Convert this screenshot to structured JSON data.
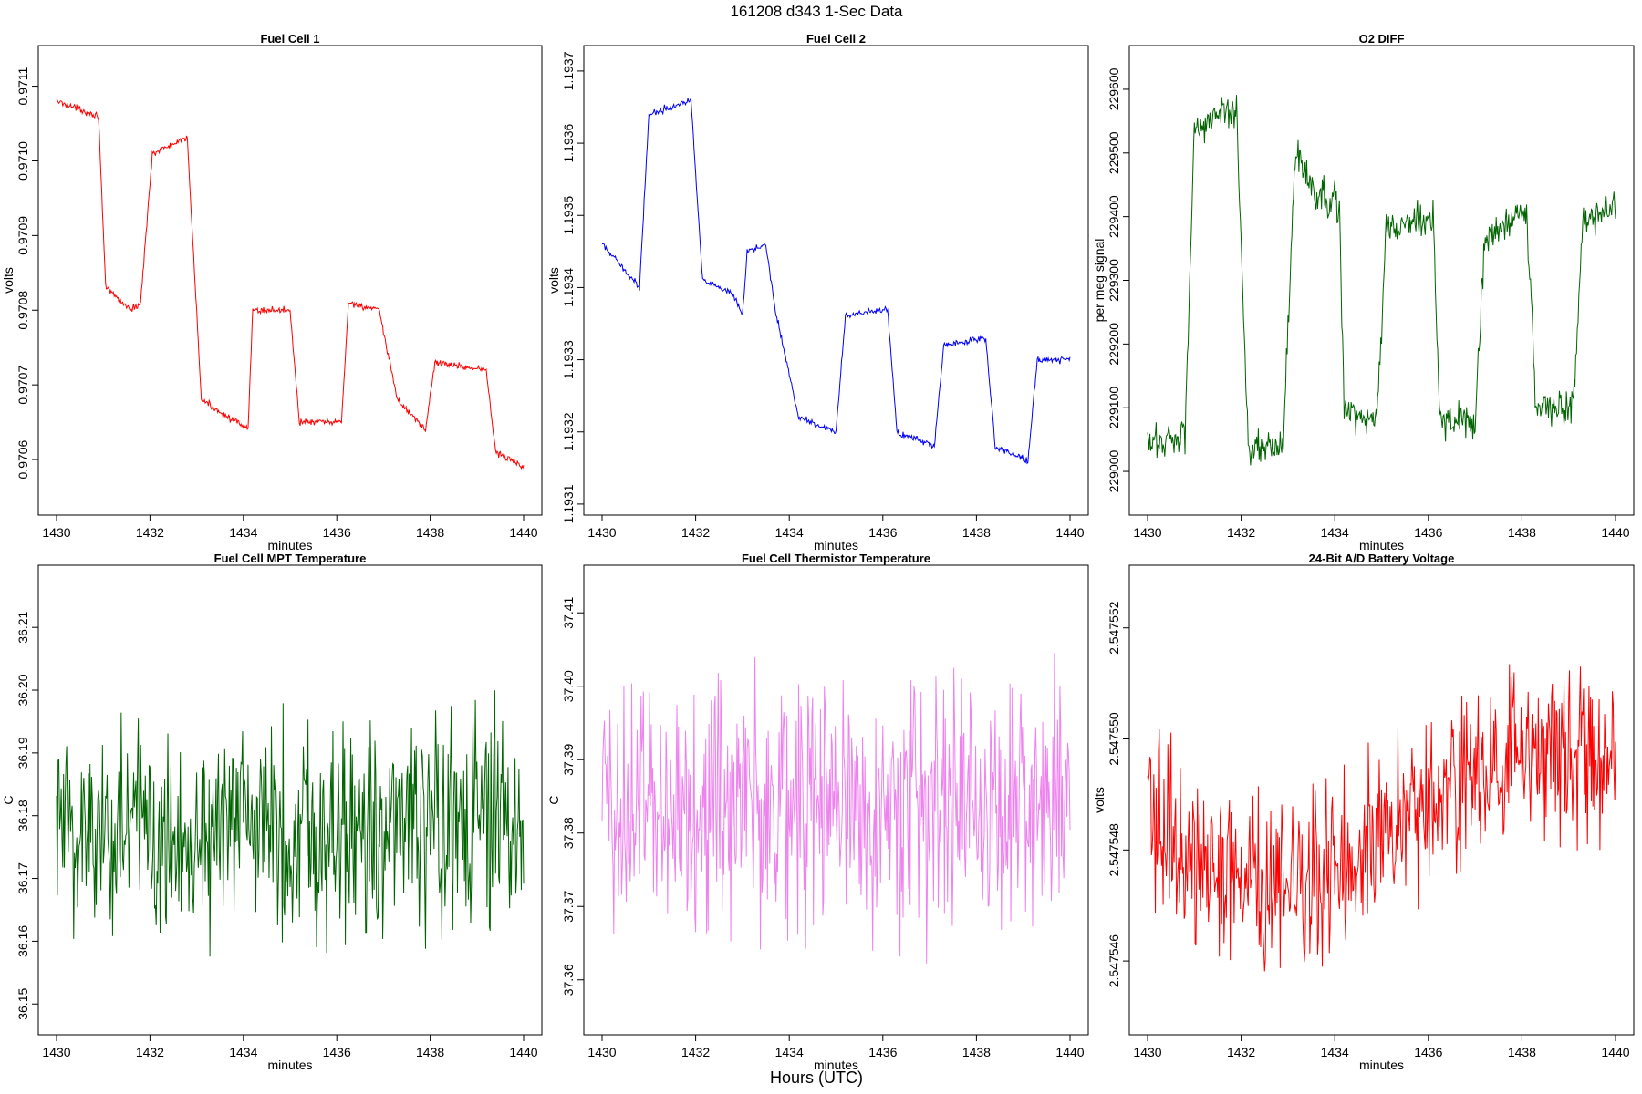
{
  "figure": {
    "title": "161208   d343   1-Sec Data",
    "bottom_label": "Hours (UTC)"
  },
  "chart_data": [
    {
      "type": "line",
      "title": "Fuel Cell 1",
      "xlabel": "minutes",
      "ylabel": "volts",
      "color": "#ff0000",
      "xlim": [
        1430,
        1440
      ],
      "ylim": [
        0.97055,
        0.97113
      ],
      "xticks": [
        1430,
        1432,
        1434,
        1436,
        1438,
        1440
      ],
      "yticks": [
        0.9706,
        0.9707,
        0.9708,
        0.9709,
        0.971,
        0.9711
      ],
      "ytick_labels": [
        "0.9706",
        "0.9707",
        "0.9708",
        "0.9709",
        "0.9710",
        "0.9711"
      ],
      "noise": 2.2e-06,
      "noise_scale": 1e-05,
      "segments": [
        [
          1430.0,
          0.97108
        ],
        [
          1430.9,
          0.97106
        ],
        [
          1431.05,
          0.97083
        ],
        [
          1431.6,
          0.9708
        ],
        [
          1431.8,
          0.97081
        ],
        [
          1432.05,
          0.97101
        ],
        [
          1432.8,
          0.97103
        ],
        [
          1433.1,
          0.97068
        ],
        [
          1434.1,
          0.97064
        ],
        [
          1434.2,
          0.9708
        ],
        [
          1435.0,
          0.9708
        ],
        [
          1435.2,
          0.97065
        ],
        [
          1436.1,
          0.97065
        ],
        [
          1436.25,
          0.97081
        ],
        [
          1436.9,
          0.9708
        ],
        [
          1437.3,
          0.97068
        ],
        [
          1437.9,
          0.97064
        ],
        [
          1438.1,
          0.97073
        ],
        [
          1439.2,
          0.97072
        ],
        [
          1439.4,
          0.97061
        ],
        [
          1440.0,
          0.97059
        ]
      ]
    },
    {
      "type": "line",
      "title": "Fuel Cell 2",
      "xlabel": "minutes",
      "ylabel": "volts",
      "color": "#0000ff",
      "xlim": [
        1430,
        1440
      ],
      "ylim": [
        1.19311,
        1.19371
      ],
      "xticks": [
        1430,
        1432,
        1434,
        1436,
        1438,
        1440
      ],
      "yticks": [
        1.1931,
        1.1932,
        1.1933,
        1.1934,
        1.1935,
        1.1936,
        1.1937
      ],
      "ytick_labels": [
        "1.1931",
        "1.1932",
        "1.1933",
        "1.1934",
        "1.1935",
        "1.1936",
        "1.1937"
      ],
      "noise": 2.2e-06,
      "noise_scale": 1e-05,
      "segments": [
        [
          1430.0,
          1.19346
        ],
        [
          1430.8,
          1.1934
        ],
        [
          1431.0,
          1.19364
        ],
        [
          1431.9,
          1.19366
        ],
        [
          1432.15,
          1.19341
        ],
        [
          1432.8,
          1.19339
        ],
        [
          1433.0,
          1.19336
        ],
        [
          1433.1,
          1.19345
        ],
        [
          1433.5,
          1.19346
        ],
        [
          1433.7,
          1.19337
        ],
        [
          1434.2,
          1.19322
        ],
        [
          1435.0,
          1.1932
        ],
        [
          1435.2,
          1.19336
        ],
        [
          1436.1,
          1.19337
        ],
        [
          1436.3,
          1.1932
        ],
        [
          1437.1,
          1.19318
        ],
        [
          1437.3,
          1.19332
        ],
        [
          1438.2,
          1.19333
        ],
        [
          1438.4,
          1.19318
        ],
        [
          1439.1,
          1.19316
        ],
        [
          1439.3,
          1.1933
        ],
        [
          1440.0,
          1.1933
        ]
      ]
    },
    {
      "type": "line",
      "title": "O2 DIFF",
      "xlabel": "minutes",
      "ylabel": "per meg signal",
      "color": "#006400",
      "xlim": [
        1430,
        1440
      ],
      "ylim": [
        228960,
        229640
      ],
      "xticks": [
        1430,
        1432,
        1434,
        1436,
        1438,
        1440
      ],
      "yticks": [
        229000,
        229100,
        229200,
        229300,
        229400,
        229500,
        229600
      ],
      "ytick_labels": [
        "229000",
        "229100",
        "229200",
        "229300",
        "229400",
        "229500",
        "229600"
      ],
      "noise": 14,
      "noise_scale": 100,
      "segments": [
        [
          1430.0,
          229040
        ],
        [
          1430.8,
          229060
        ],
        [
          1431.0,
          229540
        ],
        [
          1431.9,
          229570
        ],
        [
          1432.15,
          229040
        ],
        [
          1432.9,
          229040
        ],
        [
          1433.15,
          229500
        ],
        [
          1433.6,
          229430
        ],
        [
          1434.1,
          229420
        ],
        [
          1434.2,
          229090
        ],
        [
          1434.9,
          229080
        ],
        [
          1435.1,
          229380
        ],
        [
          1436.1,
          229400
        ],
        [
          1436.25,
          229080
        ],
        [
          1437.0,
          229080
        ],
        [
          1437.2,
          229360
        ],
        [
          1438.1,
          229410
        ],
        [
          1438.3,
          229100
        ],
        [
          1439.1,
          229100
        ],
        [
          1439.3,
          229390
        ],
        [
          1440.0,
          229420
        ]
      ]
    },
    {
      "type": "line",
      "title": "Fuel Cell MPT Temperature",
      "xlabel": "minutes",
      "ylabel": "C",
      "color": "#006400",
      "xlim": [
        1430,
        1440
      ],
      "ylim": [
        36.148,
        36.217
      ],
      "xticks": [
        1430,
        1432,
        1434,
        1436,
        1438,
        1440
      ],
      "yticks": [
        36.15,
        36.16,
        36.17,
        36.18,
        36.19,
        36.2,
        36.21
      ],
      "ytick_labels": [
        "36.15",
        "36.16",
        "36.17",
        "36.18",
        "36.19",
        "36.20",
        "36.21"
      ],
      "noise": 0.0085,
      "noise_scale": 0.01,
      "segments": [
        [
          1430.0,
          36.178
        ],
        [
          1440.0,
          36.178
        ]
      ]
    },
    {
      "type": "line",
      "title": "Fuel Cell Thermistor Temperature",
      "xlabel": "minutes",
      "ylabel": "C",
      "color": "#ee82ee",
      "xlim": [
        1430,
        1440
      ],
      "ylim": [
        37.355,
        37.414
      ],
      "xticks": [
        1430,
        1432,
        1434,
        1436,
        1438,
        1440
      ],
      "yticks": [
        37.36,
        37.37,
        37.38,
        37.39,
        37.4,
        37.41
      ],
      "ytick_labels": [
        "37.36",
        "37.37",
        "37.38",
        "37.39",
        "37.40",
        "37.41"
      ],
      "noise": 0.0085,
      "noise_scale": 0.01,
      "segments": [
        [
          1430.0,
          37.384
        ],
        [
          1440.0,
          37.384
        ]
      ]
    },
    {
      "type": "line",
      "title": "24-Bit A/D Battery Voltage",
      "xlabel": "minutes",
      "ylabel": "volts",
      "color": "#ff0000",
      "xlim": [
        1430,
        1440
      ],
      "ylim": [
        2.547545,
        2.5475528
      ],
      "xticks": [
        1430,
        1432,
        1434,
        1436,
        1438,
        1440
      ],
      "yticks": [
        2.547546,
        2.547548,
        2.54755,
        2.547552
      ],
      "ytick_labels": [
        "2.547546",
        "2.547548",
        "2.547550",
        "2.547552"
      ],
      "noise": 7.5e-07,
      "noise_scale": 1e-06,
      "segments": [
        [
          1430.0,
          2.5475487
        ],
        [
          1431.0,
          2.5475478
        ],
        [
          1432.0,
          2.5475475
        ],
        [
          1433.0,
          2.5475472
        ],
        [
          1434.0,
          2.5475478
        ],
        [
          1435.0,
          2.5475484
        ],
        [
          1436.0,
          2.5475488
        ],
        [
          1437.0,
          2.5475493
        ],
        [
          1438.0,
          2.5475496
        ],
        [
          1439.0,
          2.5475496
        ],
        [
          1440.0,
          2.5475498
        ]
      ]
    }
  ]
}
